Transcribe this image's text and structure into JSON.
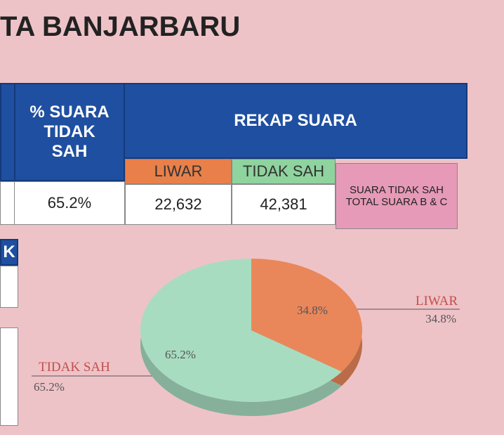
{
  "header": {
    "title": "TA  BANJARBARU"
  },
  "table": {
    "col_percent": "% SUARA TIDAK SAH",
    "col_rekap": "REKAP SUARA",
    "sub_liwar": "LIWAR",
    "sub_tidak_sah": "TIDAK SAH",
    "note": "SUARA TIDAK SAH TOTAL SUARA B & C",
    "row": [
      "65.2%",
      "22,632",
      "42,381"
    ]
  },
  "left_panel": {
    "label": "K"
  },
  "chart_data": {
    "type": "pie",
    "categories": [
      "LIWAR",
      "TIDAK SAH"
    ],
    "values": [
      34.8,
      65.2
    ],
    "value_labels": [
      "34.8%",
      "65.2%"
    ],
    "colors": [
      "#e9875a",
      "#a8dcc0"
    ]
  }
}
